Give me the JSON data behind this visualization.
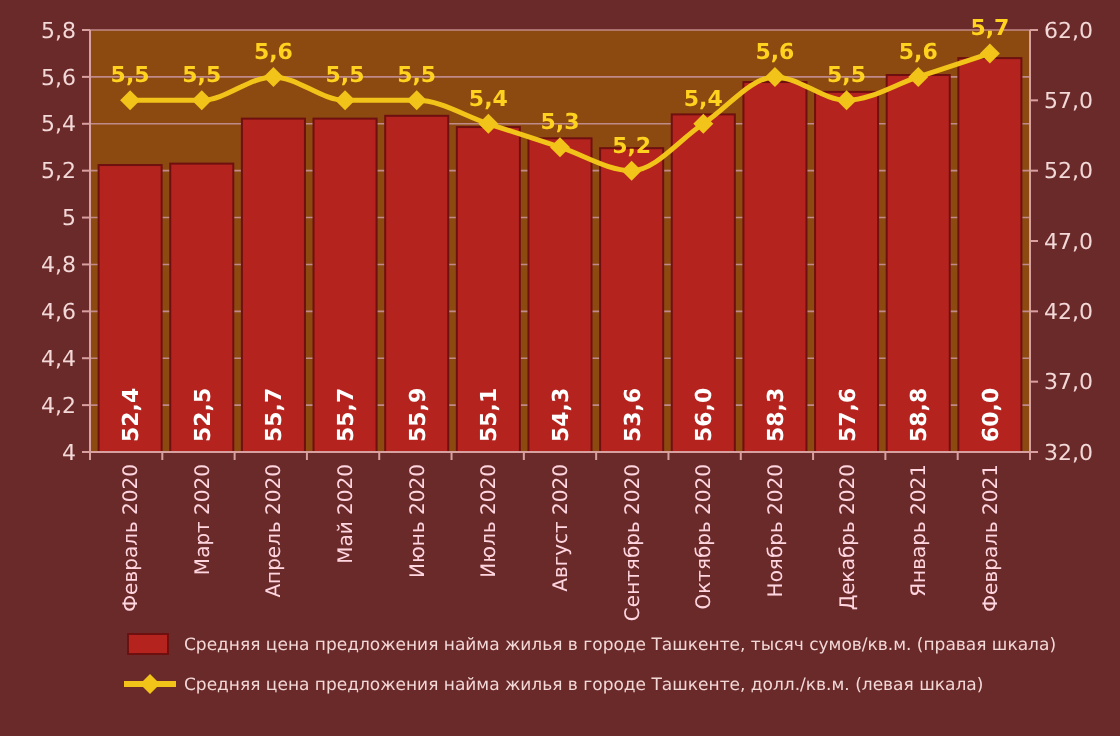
{
  "chart_data": {
    "type": "bar",
    "categories": [
      "Февраль 2020",
      "Март 2020",
      "Апрель 2020",
      "Май 2020",
      "Июнь 2020",
      "Июль 2020",
      "Август 2020",
      "Сентябрь 2020",
      "Октябрь 2020",
      "Ноябрь 2020",
      "Декабрь 2020",
      "Январь 2021",
      "Февраль 2021"
    ],
    "series": [
      {
        "name": "Средняя цена предложения найма жилья в городе Ташкенте, тысяч сумов/кв.м. (правая шкала)",
        "axis": "y2",
        "color": "#b5231f",
        "values": [
          52.4,
          52.5,
          55.7,
          55.7,
          55.9,
          55.1,
          54.3,
          53.6,
          56.0,
          58.3,
          57.6,
          58.8,
          60.0
        ],
        "value_labels": [
          "52,4",
          "52,5",
          "55,7",
          "55,7",
          "55,9",
          "55,1",
          "54,3",
          "53,6",
          "56,0",
          "58,3",
          "57,6",
          "58,8",
          "60,0"
        ]
      },
      {
        "name": "Средняя цена предложения найма жилья в городе Ташкенте, долл./кв.м. (левая шкала)",
        "type": "line",
        "axis": "y",
        "color": "#f2c318",
        "marker": "diamond",
        "values": [
          5.5,
          5.5,
          5.6,
          5.5,
          5.5,
          5.4,
          5.3,
          5.2,
          5.4,
          5.6,
          5.5,
          5.6,
          5.7
        ],
        "value_labels": [
          "5,5",
          "5,5",
          "5,6",
          "5,5",
          "5,5",
          "5,4",
          "5,3",
          "5,2",
          "5,4",
          "5,6",
          "5,5",
          "5,6",
          "5,7"
        ]
      }
    ],
    "ylim": [
      4,
      5.8
    ],
    "yticks": [
      4,
      {
        "value": 4.2,
        "label": "4,2"
      },
      {
        "value": 4.4,
        "label": "4,4"
      },
      {
        "value": 4.6,
        "label": "4,6"
      },
      {
        "value": 4.8,
        "label": "4,8"
      },
      5,
      {
        "value": 5.2,
        "label": "5,2"
      },
      {
        "value": 5.4,
        "label": "5,4"
      },
      {
        "value": 5.6,
        "label": "5,6"
      },
      {
        "value": 5.8,
        "label": "5,8"
      }
    ],
    "y2lim": [
      32,
      62
    ],
    "y2ticks": [
      {
        "value": 32,
        "label": "32,0"
      },
      {
        "value": 37,
        "label": "37,0"
      },
      {
        "value": 42,
        "label": "42,0"
      },
      {
        "value": 47,
        "label": "47,0"
      },
      {
        "value": 52,
        "label": "52,0"
      },
      {
        "value": 57,
        "label": "57,0"
      },
      {
        "value": 62,
        "label": "62,0"
      }
    ],
    "grid": "y",
    "legend": "bottom"
  }
}
